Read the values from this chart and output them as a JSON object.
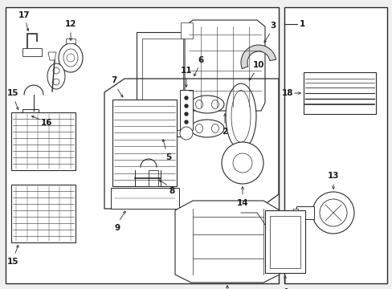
{
  "bg_color": "#f5f5f5",
  "line_color": "#2a2a2a",
  "text_color": "#1a1a1a",
  "fig_width": 4.89,
  "fig_height": 3.6,
  "dpi": 100
}
